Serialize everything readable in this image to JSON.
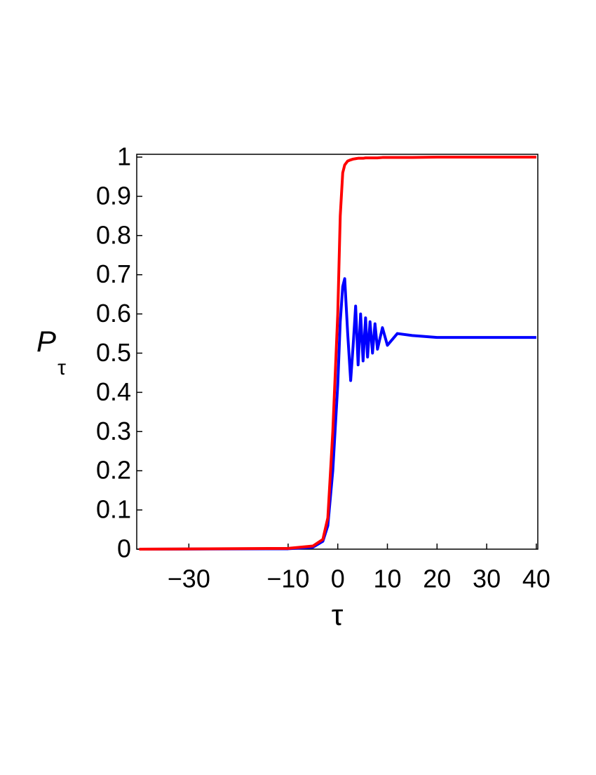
{
  "chart_data": {
    "type": "line",
    "xlabel": "τ",
    "ylabel": "P",
    "ylabel_sub": "τ",
    "x": [
      -40,
      -10,
      -5,
      -3,
      -2,
      -1,
      0,
      0.5,
      1,
      1.4,
      2,
      2.6,
      3.1,
      3.6,
      4.1,
      4.6,
      5.1,
      5.6,
      6.0,
      6.5,
      7.0,
      7.5,
      8,
      9,
      10,
      12,
      15,
      20,
      30,
      40
    ],
    "series": [
      {
        "name": "blue",
        "color": "#0000ff",
        "values": [
          0,
          0.001,
          0.005,
          0.02,
          0.06,
          0.2,
          0.42,
          0.58,
          0.67,
          0.69,
          0.55,
          0.43,
          0.52,
          0.62,
          0.47,
          0.6,
          0.48,
          0.59,
          0.49,
          0.58,
          0.5,
          0.575,
          0.51,
          0.565,
          0.52,
          0.55,
          0.545,
          0.54,
          0.54,
          0.54
        ]
      },
      {
        "name": "red",
        "color": "#ff0000",
        "values": [
          0,
          0.002,
          0.008,
          0.025,
          0.08,
          0.3,
          0.6,
          0.85,
          0.96,
          0.98,
          0.99,
          0.993,
          0.995,
          0.996,
          0.997,
          0.997,
          0.997,
          0.998,
          0.998,
          0.998,
          0.998,
          0.998,
          0.998,
          0.999,
          0.999,
          0.999,
          0.999,
          1,
          1,
          1
        ]
      }
    ],
    "xlim": [
      -40.5,
      40.3
    ],
    "xticks": [
      {
        "value": -30,
        "label": "−30"
      },
      {
        "value": -10,
        "label": "−10"
      },
      0,
      10,
      20,
      30,
      40
    ],
    "ylim": [
      0,
      1
    ],
    "yticks": [
      0,
      0.1,
      0.2,
      0.3,
      0.4,
      0.5,
      0.6,
      0.7,
      0.8,
      0.9,
      1
    ]
  }
}
